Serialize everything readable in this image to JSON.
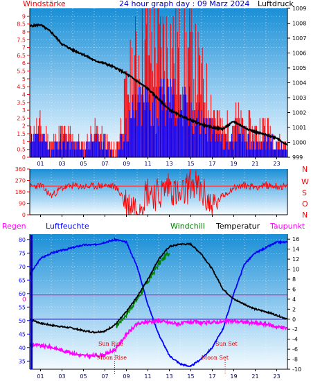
{
  "header": {
    "left_label": "Windstärke",
    "title": "24 hour graph day : 09 Marz 2024",
    "right_label": "Luftdruck"
  },
  "colors": {
    "wind_speed": "#ff0000",
    "wind_gust": "#0000ff",
    "pressure": "#000000",
    "wind_dir": "#ff0000",
    "humidity": "#0000ff",
    "windchill": "#008000",
    "temperature": "#000000",
    "dewpoint": "#ff00ff",
    "regen": "#ff00ff",
    "sun_moon": "#cc0000",
    "zero_line": "#ff00aa"
  },
  "x_ticks": [
    "01",
    "03",
    "05",
    "07",
    "09",
    "11",
    "13",
    "15",
    "17",
    "19",
    "21",
    "23"
  ],
  "chart_data": [
    {
      "type": "line",
      "title": "24 hour graph day : 09 Marz 2024",
      "ylabel_left": "Windstärke",
      "ylabel_right": "Luftdruck",
      "ylim_left": [
        0,
        9.5
      ],
      "ylim_right": [
        999,
        1009
      ],
      "left_ticks": [
        "0",
        "0.5",
        "1",
        "1.5",
        "2",
        "2.5",
        "3",
        "3.5",
        "4",
        "4.5",
        "5",
        "5.5",
        "6",
        "6.5",
        "7",
        "7.5",
        "8",
        "8.5",
        "9"
      ],
      "right_ticks": [
        "999",
        "1000",
        "1001",
        "1002",
        "1003",
        "1004",
        "1005",
        "1006",
        "1007",
        "1008",
        "1009"
      ],
      "series": [
        {
          "name": "Luftdruck",
          "x": [
            0,
            1,
            2,
            3,
            4,
            5,
            6,
            7,
            8,
            9,
            10,
            11,
            12,
            13,
            14,
            15,
            16,
            17,
            18,
            19,
            20,
            21,
            22,
            23,
            24
          ],
          "values": [
            1007.8,
            1007.9,
            1007.4,
            1006.6,
            1006.2,
            1005.9,
            1005.5,
            1005.3,
            1005.0,
            1004.6,
            1004.1,
            1003.6,
            1002.9,
            1002.2,
            1001.8,
            1001.5,
            1001.2,
            1001.0,
            1000.9,
            1001.4,
            1001.0,
            1000.7,
            1000.5,
            1000.3,
            999.8
          ]
        },
        {
          "name": "Wind",
          "x": [
            0,
            1,
            2,
            3,
            4,
            5,
            6,
            7,
            8,
            9,
            10,
            11,
            12,
            13,
            14,
            15,
            16,
            17,
            18,
            19,
            20,
            21,
            22,
            23,
            24
          ],
          "values": [
            1.5,
            2.5,
            1.0,
            2.0,
            1.5,
            1.0,
            2.0,
            1.5,
            0.5,
            5.0,
            8.0,
            9.0,
            8.5,
            9.0,
            8.0,
            8.0,
            6.0,
            4.0,
            2.0,
            3.0,
            2.5,
            2.0,
            2.5,
            1.5,
            1.0
          ]
        },
        {
          "name": "Böen",
          "x": [
            0,
            1,
            2,
            3,
            4,
            5,
            6,
            7,
            8,
            9,
            10,
            11,
            12,
            13,
            14,
            15,
            16,
            17,
            18,
            19,
            20,
            21,
            22,
            23,
            24
          ],
          "values": [
            1.0,
            1.5,
            0.5,
            1.5,
            1.0,
            0.5,
            1.5,
            1.0,
            0,
            2.5,
            4.0,
            4.5,
            4.0,
            5.0,
            4.0,
            4.0,
            3.0,
            2.0,
            1.0,
            1.5,
            1.5,
            1.0,
            1.5,
            1.0,
            0.5
          ]
        }
      ]
    },
    {
      "type": "line",
      "ylabel_right": [
        "N",
        "W",
        "S",
        "O",
        "N"
      ],
      "ylim": [
        0,
        360
      ],
      "left_ticks": [
        "0",
        "90",
        "180",
        "270",
        "360"
      ],
      "series": [
        {
          "name": "Windrichtung",
          "x": [
            0,
            1,
            2,
            3,
            4,
            5,
            6,
            7,
            8,
            9,
            10,
            11,
            12,
            13,
            14,
            15,
            16,
            17,
            18,
            19,
            20,
            21,
            22,
            23,
            24
          ],
          "values": [
            220,
            230,
            150,
            210,
            230,
            220,
            225,
            230,
            220,
            90,
            60,
            200,
            150,
            240,
            120,
            260,
            180,
            60,
            150,
            215,
            230,
            220,
            230,
            225,
            220
          ]
        }
      ]
    },
    {
      "type": "line",
      "legend": [
        "Regen",
        "Luftfeuchte",
        "Windchill",
        "Temperatur",
        "Taupunkt"
      ],
      "ylim_left": [
        32,
        82
      ],
      "ylim_right": [
        -10,
        17
      ],
      "left_ticks": [
        "35",
        "40",
        "45",
        "50",
        "55",
        "60",
        "65",
        "70",
        "75",
        "80"
      ],
      "right_ticks": [
        "-10",
        "-8",
        "-6",
        "-4",
        "-2",
        "0",
        "2",
        "4",
        "6",
        "8",
        "10",
        "12",
        "14",
        "16"
      ],
      "zero_marker": "0",
      "annotations": [
        "Sun Rise",
        "Moon Rise",
        "Sun Set",
        "Moon Set"
      ],
      "series": [
        {
          "name": "Luftfeuchte",
          "x": [
            0,
            1,
            2,
            3,
            4,
            5,
            6,
            7,
            8,
            9,
            10,
            11,
            12,
            13,
            14,
            15,
            16,
            17,
            18,
            19,
            20,
            21,
            22,
            23,
            24
          ],
          "values": [
            67,
            73,
            75,
            76,
            77,
            78,
            78,
            79,
            80,
            79,
            70,
            56,
            45,
            37,
            34,
            33,
            36,
            40,
            47,
            60,
            71,
            75,
            77,
            79,
            79
          ]
        },
        {
          "name": "Temperatur",
          "x": [
            0,
            1,
            2,
            3,
            4,
            5,
            6,
            7,
            8,
            9,
            10,
            11,
            12,
            13,
            14,
            15,
            16,
            17,
            18,
            19,
            20,
            21,
            22,
            23,
            24
          ],
          "values": [
            0.0,
            -0.8,
            -1.2,
            -1.5,
            -1.8,
            -2.3,
            -2.6,
            -2.4,
            -1.0,
            1.5,
            4.5,
            8.0,
            12.0,
            14.5,
            15.0,
            15.0,
            13.0,
            10.0,
            6.0,
            4.0,
            3.0,
            2.0,
            1.5,
            0.8,
            0.0
          ]
        },
        {
          "name": "Windchill",
          "x": [
            8,
            9,
            10,
            11,
            12,
            13
          ],
          "values": [
            -1.5,
            1.0,
            4.0,
            7.5,
            11.0,
            13.5
          ]
        },
        {
          "name": "Taupunkt",
          "x": [
            0,
            1,
            2,
            3,
            4,
            5,
            6,
            7,
            8,
            9,
            10,
            11,
            12,
            13,
            14,
            15,
            16,
            17,
            18,
            19,
            20,
            21,
            22,
            23,
            24
          ],
          "values": [
            -5.0,
            -5.3,
            -5.6,
            -6.2,
            -6.8,
            -7.3,
            -7.3,
            -7.1,
            -6.0,
            -3.0,
            -1.0,
            -0.5,
            -0.3,
            -0.7,
            -0.9,
            -0.5,
            -0.8,
            -0.6,
            -0.5,
            -0.4,
            -0.6,
            -0.8,
            -1.0,
            -1.5,
            -1.8
          ]
        }
      ]
    }
  ],
  "annotations": {
    "sun_rise": "Sun Rise",
    "moon_rise": "Moon Rise",
    "sun_set": "Sun Set",
    "moon_set": "Moon Set",
    "zero": "0"
  },
  "legend": {
    "regen": "Regen",
    "luftfeuchte": "Luftfeuchte",
    "windchill": "Windchill",
    "temperatur": "Temperatur",
    "taupunkt": "Taupunkt"
  },
  "dir_letters": [
    "N",
    "W",
    "S",
    "O",
    "N"
  ]
}
